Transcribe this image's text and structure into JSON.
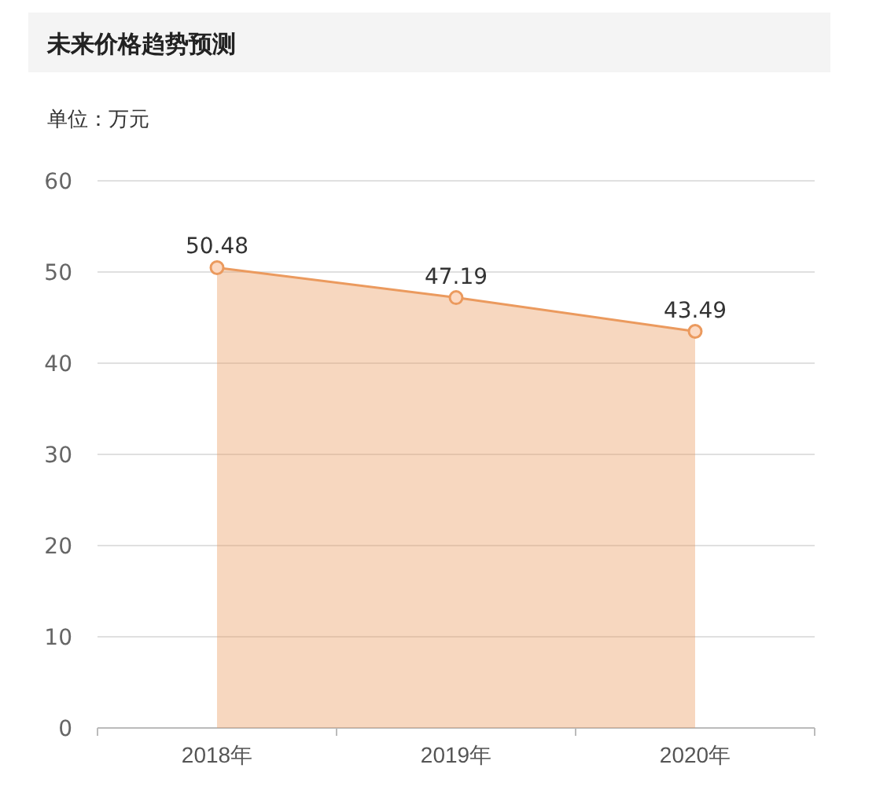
{
  "chart_data": {
    "type": "area",
    "title": "未来价格趋势预测",
    "ylabel": "单位：万元",
    "categories": [
      "2018年",
      "2019年",
      "2020年"
    ],
    "values": [
      50.48,
      47.19,
      43.49
    ],
    "color": "#eb9a5e",
    "ylim": [
      0,
      60
    ],
    "yticks": [
      0,
      10,
      20,
      30,
      40,
      50,
      60
    ],
    "grid": "y",
    "marker": "circle",
    "data_labels": true
  }
}
